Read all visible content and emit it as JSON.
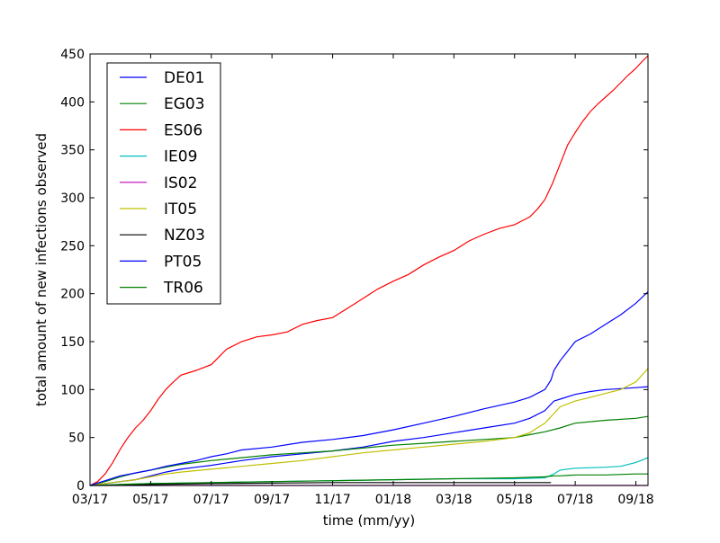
{
  "chart_data": {
    "type": "line",
    "title": "",
    "xlabel": "time (mm/yy)",
    "ylabel": "total amount of new infections observed",
    "x_unit": "month index (0 = 03/17, 18 = 09/18)",
    "xlim": [
      0,
      18.4
    ],
    "ylim": [
      0,
      450
    ],
    "x_ticks": [
      0,
      2,
      4,
      6,
      8,
      10,
      12,
      14,
      16,
      18
    ],
    "x_tick_labels": [
      "03/17",
      "05/17",
      "07/17",
      "09/17",
      "11/17",
      "01/18",
      "03/18",
      "05/18",
      "07/18",
      "09/18"
    ],
    "y_ticks": [
      0,
      50,
      100,
      150,
      200,
      250,
      300,
      350,
      400,
      450
    ],
    "y_tick_labels": [
      "0",
      "50",
      "100",
      "150",
      "200",
      "250",
      "300",
      "350",
      "400",
      "450"
    ],
    "grid": false,
    "legend_position": "top-left",
    "series": [
      {
        "name": "DE01",
        "color": "#0000ff",
        "x": [
          0,
          0.5,
          1,
          1.5,
          2,
          2.5,
          3,
          3.5,
          4,
          5,
          6,
          7,
          8,
          9,
          10,
          11,
          12,
          13,
          14,
          14.5,
          15,
          15.3,
          15.5,
          16,
          16.5,
          17,
          17.5,
          18,
          18.4
        ],
        "y": [
          0,
          2,
          4,
          6,
          10,
          14,
          17,
          19,
          21,
          26,
          30,
          33,
          36,
          40,
          46,
          50,
          55,
          60,
          65,
          70,
          78,
          88,
          90,
          95,
          98,
          100,
          101,
          102,
          103
        ]
      },
      {
        "name": "EG03",
        "color": "#008000",
        "x": [
          0,
          0.5,
          1,
          1.5,
          2,
          2.5,
          3,
          4,
          5,
          6,
          7,
          8,
          9,
          10,
          11,
          12,
          13,
          14,
          14.5,
          15,
          15.5,
          16,
          17,
          18,
          18.4
        ],
        "y": [
          0,
          4,
          9,
          13,
          16,
          19,
          22,
          26,
          29,
          32,
          34,
          36,
          39,
          42,
          44,
          46,
          48,
          50,
          53,
          56,
          60,
          65,
          68,
          70,
          72
        ]
      },
      {
        "name": "ES06",
        "color": "#ff0000",
        "x": [
          0,
          0.25,
          0.5,
          0.75,
          1,
          1.25,
          1.5,
          1.75,
          2,
          2.25,
          2.5,
          2.75,
          3,
          3.5,
          4,
          4.5,
          5,
          5.5,
          6,
          6.5,
          7,
          7.5,
          8,
          8.5,
          9,
          9.5,
          10,
          10.5,
          11,
          11.5,
          12,
          12.5,
          13,
          13.5,
          14,
          14.25,
          14.5,
          14.75,
          15,
          15.25,
          15.5,
          15.75,
          16,
          16.25,
          16.5,
          16.75,
          17,
          17.25,
          17.5,
          17.75,
          18,
          18.2,
          18.4
        ],
        "y": [
          0,
          4,
          12,
          24,
          38,
          50,
          60,
          68,
          78,
          90,
          100,
          108,
          115,
          120,
          126,
          142,
          150,
          155,
          157,
          160,
          168,
          172,
          175,
          185,
          195,
          205,
          213,
          220,
          230,
          238,
          245,
          255,
          262,
          268,
          272,
          276,
          280,
          288,
          298,
          315,
          335,
          355,
          368,
          380,
          390,
          398,
          405,
          412,
          420,
          428,
          435,
          442,
          448
        ]
      },
      {
        "name": "IE09",
        "color": "#00bfbf",
        "x": [
          0,
          1,
          2,
          4,
          6,
          8,
          10,
          12,
          14,
          15,
          15.3,
          15.5,
          16,
          17,
          17.5,
          18,
          18.4
        ],
        "y": [
          0,
          1,
          2,
          3,
          4,
          5,
          6,
          7,
          7,
          8,
          12,
          16,
          18,
          19,
          20,
          24,
          29
        ]
      },
      {
        "name": "IS02",
        "color": "#bf00bf",
        "x": [
          0,
          18.4
        ],
        "y": [
          0,
          0
        ]
      },
      {
        "name": "IT05",
        "color": "#bfbf00",
        "x": [
          0,
          0.5,
          1,
          1.5,
          2,
          2.5,
          3,
          4,
          5,
          6,
          7,
          8,
          9,
          10,
          11,
          12,
          13,
          14,
          14.5,
          15,
          15.3,
          15.5,
          16,
          16.5,
          17,
          17.5,
          18,
          18.4
        ],
        "y": [
          0,
          2,
          4,
          6,
          9,
          12,
          14,
          17,
          20,
          23,
          26,
          30,
          34,
          37,
          40,
          43,
          46,
          50,
          55,
          65,
          75,
          82,
          88,
          92,
          96,
          100,
          108,
          122
        ]
      },
      {
        "name": "NZ03",
        "color": "#000000",
        "x": [
          0,
          2,
          4,
          8,
          12,
          15.2
        ],
        "y": [
          0,
          1,
          2,
          3,
          3,
          3
        ]
      },
      {
        "name": "PT05",
        "color": "#0000ff",
        "x": [
          0,
          0.5,
          1,
          1.5,
          2,
          2.5,
          3,
          3.5,
          4,
          4.5,
          5,
          6,
          7,
          8,
          9,
          10,
          11,
          12,
          13,
          14,
          14.5,
          15,
          15.2,
          15.3,
          15.5,
          15.75,
          16,
          16.5,
          17,
          17.5,
          18,
          18.4
        ],
        "y": [
          0,
          5,
          10,
          13,
          16,
          20,
          23,
          26,
          30,
          33,
          37,
          40,
          45,
          48,
          52,
          58,
          65,
          72,
          80,
          87,
          92,
          100,
          110,
          120,
          130,
          140,
          150,
          158,
          168,
          178,
          190,
          202
        ]
      },
      {
        "name": "TR06",
        "color": "#008000",
        "x": [
          0,
          1,
          2,
          4,
          6,
          8,
          10,
          12,
          14,
          15,
          15.3,
          15.5,
          16,
          17,
          18,
          18.4
        ],
        "y": [
          0,
          1,
          2,
          3,
          4,
          5,
          6,
          7,
          8,
          9,
          10,
          10,
          11,
          11,
          12,
          12
        ]
      }
    ]
  }
}
